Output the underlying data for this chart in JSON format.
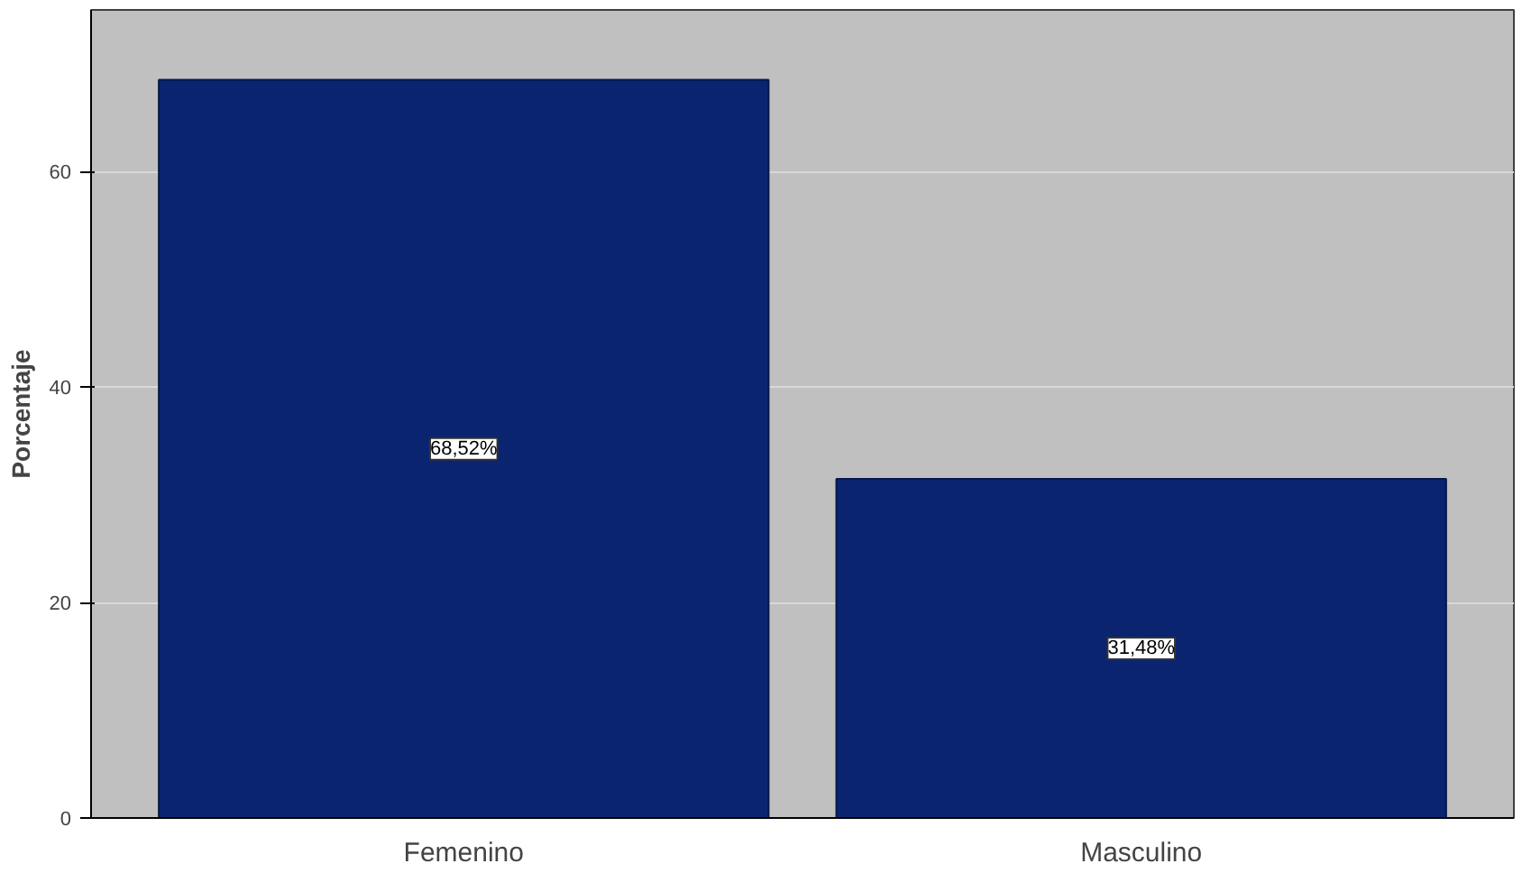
{
  "chart_data": {
    "type": "bar",
    "ylabel": "Porcentaje",
    "categories": [
      "Femenino",
      "Masculino"
    ],
    "values": [
      68.52,
      31.48
    ],
    "value_labels": [
      "68,52%",
      "31,48%"
    ],
    "color": "#0a2470",
    "ylim": [
      0,
      75
    ],
    "yticks": [
      0,
      20,
      40,
      60
    ],
    "grid": "y"
  }
}
